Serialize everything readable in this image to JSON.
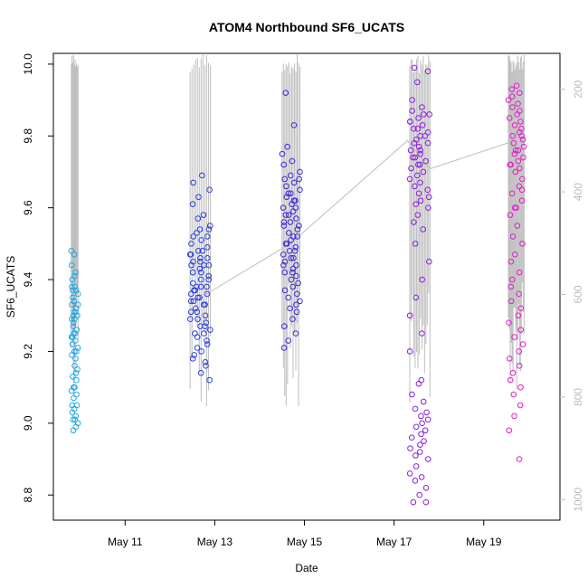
{
  "chart_data": {
    "type": "scatter",
    "title": "ATOM4 Northbound SF6_UCATS",
    "xlabel": "Date",
    "ylabel": "SF6_UCATS",
    "x_unit": "day of May",
    "xlim": [
      9.4,
      20.7
    ],
    "ylim": [
      8.73,
      10.03
    ],
    "x_ticks": [
      {
        "value": 11,
        "label": "May 11"
      },
      {
        "value": 13,
        "label": "May 13"
      },
      {
        "value": 15,
        "label": "May 15"
      },
      {
        "value": 17,
        "label": "May 17"
      },
      {
        "value": 19,
        "label": "May 19"
      }
    ],
    "y_ticks": [
      {
        "value": 8.8,
        "label": "8.8"
      },
      {
        "value": 9.0,
        "label": "9.0"
      },
      {
        "value": 9.2,
        "label": "9.2"
      },
      {
        "value": 9.4,
        "label": "9.4"
      },
      {
        "value": 9.6,
        "label": "9.6"
      },
      {
        "value": 9.8,
        "label": "9.8"
      },
      {
        "value": 10.0,
        "label": "10.0"
      }
    ],
    "y2_note": "secondary axis: pressure (inverted), gray profile lines",
    "y2lim": [
      1040,
      130
    ],
    "y2_ticks": [
      {
        "value": 200,
        "label": "200"
      },
      {
        "value": 400,
        "label": "400"
      },
      {
        "value": 600,
        "label": "600"
      },
      {
        "value": 800,
        "label": "800"
      },
      {
        "value": 1000,
        "label": "1000"
      }
    ],
    "grid": false,
    "legend": "none",
    "colors": {
      "flight1": "#1fa8e6",
      "flight2": "#2a3fe0",
      "flight3": "#3a2ad8",
      "flight4": "#8a1fe0",
      "flight5": "#e01fc8",
      "profile_line": "#bdbdbd"
    },
    "flights": [
      {
        "color_key": "flight1",
        "x_range": [
          9.8,
          9.95
        ],
        "points": [
          9.44,
          9.42,
          9.41,
          9.4,
          9.38,
          9.37,
          9.36,
          9.34,
          9.33,
          9.32,
          9.31,
          9.3,
          9.29,
          9.28,
          9.26,
          9.25,
          9.24,
          9.23,
          9.22,
          9.21,
          9.2,
          9.19,
          9.18,
          9.16,
          9.15,
          9.14,
          9.13,
          9.12,
          9.1,
          9.09,
          9.08,
          9.07,
          9.05,
          9.04,
          9.03,
          9.02,
          9.01,
          9.0,
          8.99,
          8.98,
          9.48,
          9.47,
          9.38,
          9.37,
          9.3,
          9.29,
          9.25,
          9.24,
          9.2,
          9.1,
          9.05,
          9.01,
          9.35,
          9.33,
          9.31,
          9.27
        ]
      },
      {
        "color_key": "flight2",
        "x_range": [
          12.45,
          12.9
        ],
        "points": [
          9.47,
          9.46,
          9.45,
          9.44,
          9.43,
          9.42,
          9.41,
          9.4,
          9.39,
          9.38,
          9.37,
          9.36,
          9.35,
          9.34,
          9.33,
          9.32,
          9.31,
          9.3,
          9.29,
          9.28,
          9.27,
          9.26,
          9.25,
          9.24,
          9.22,
          9.2,
          9.18,
          9.16,
          9.14,
          9.12,
          9.69,
          9.67,
          9.65,
          9.63,
          9.61,
          9.58,
          9.57,
          9.55,
          9.54,
          9.53,
          9.52,
          9.51,
          9.5,
          9.49,
          9.48,
          9.47,
          9.46,
          9.45,
          9.44,
          9.42,
          9.4,
          9.38,
          9.37,
          9.36,
          9.35,
          9.34,
          9.33,
          9.31,
          9.29,
          9.27,
          9.25,
          9.23,
          9.21,
          9.19,
          9.17,
          9.38,
          9.44,
          9.48,
          9.52,
          9.54
        ]
      },
      {
        "color_key": "flight3",
        "x_range": [
          14.5,
          14.9
        ],
        "points": [
          9.92,
          9.83,
          9.77,
          9.75,
          9.73,
          9.72,
          9.7,
          9.69,
          9.68,
          9.67,
          9.66,
          9.65,
          9.64,
          9.63,
          9.62,
          9.61,
          9.6,
          9.59,
          9.58,
          9.57,
          9.56,
          9.55,
          9.54,
          9.53,
          9.52,
          9.51,
          9.5,
          9.49,
          9.48,
          9.47,
          9.46,
          9.45,
          9.44,
          9.43,
          9.42,
          9.41,
          9.4,
          9.39,
          9.38,
          9.37,
          9.36,
          9.35,
          9.34,
          9.33,
          9.32,
          9.31,
          9.29,
          9.27,
          9.25,
          9.23,
          9.21,
          9.62,
          9.58,
          9.55,
          9.52,
          9.5,
          9.48,
          9.46,
          9.44,
          9.42,
          9.56,
          9.6,
          9.64,
          9.68
        ]
      },
      {
        "color_key": "flight4",
        "x_range": [
          17.35,
          17.8
        ],
        "points": [
          9.99,
          9.98,
          9.95,
          9.9,
          9.88,
          9.87,
          9.86,
          9.85,
          9.84,
          9.83,
          9.82,
          9.81,
          9.8,
          9.79,
          9.78,
          9.77,
          9.76,
          9.75,
          9.74,
          9.73,
          9.72,
          9.71,
          9.7,
          9.69,
          9.68,
          9.67,
          9.66,
          9.65,
          9.64,
          9.63,
          9.62,
          9.61,
          9.6,
          9.58,
          9.56,
          9.54,
          9.5,
          9.45,
          9.4,
          9.35,
          9.3,
          9.25,
          9.2,
          9.12,
          9.11,
          9.08,
          9.06,
          9.04,
          9.03,
          9.02,
          9.01,
          9.0,
          8.99,
          8.98,
          8.97,
          8.96,
          8.95,
          8.94,
          8.93,
          8.92,
          8.91,
          8.9,
          8.88,
          8.86,
          8.85,
          8.84,
          8.82,
          8.8,
          8.78,
          8.78,
          9.72,
          9.74,
          9.76,
          9.78,
          9.8,
          9.82,
          9.84,
          9.86
        ]
      },
      {
        "color_key": "flight5",
        "x_range": [
          19.55,
          19.9
        ],
        "points": [
          9.93,
          9.92,
          9.91,
          9.9,
          9.89,
          9.88,
          9.87,
          9.86,
          9.85,
          9.84,
          9.83,
          9.82,
          9.81,
          9.8,
          9.79,
          9.78,
          9.77,
          9.76,
          9.75,
          9.74,
          9.73,
          9.72,
          9.71,
          9.7,
          9.68,
          9.66,
          9.64,
          9.62,
          9.6,
          9.58,
          9.55,
          9.52,
          9.5,
          9.47,
          9.45,
          9.42,
          9.4,
          9.38,
          9.36,
          9.34,
          9.32,
          9.3,
          9.28,
          9.26,
          9.24,
          9.22,
          9.2,
          9.18,
          9.16,
          9.14,
          9.12,
          9.1,
          9.08,
          9.05,
          9.02,
          8.98,
          8.9,
          9.94,
          9.8,
          9.76,
          9.72,
          9.65,
          9.6
        ]
      }
    ],
    "transit_line": [
      {
        "x": 12.8,
        "p": 600
      },
      {
        "x": 14.7,
        "p": 500
      },
      {
        "x": 17.3,
        "p": 300
      },
      {
        "x": 17.8,
        "p": 355
      },
      {
        "x": 19.7,
        "p": 300
      }
    ]
  }
}
